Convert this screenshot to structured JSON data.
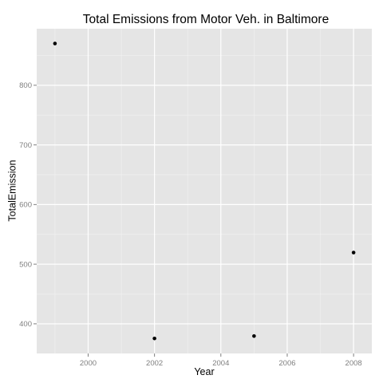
{
  "chart_data": {
    "type": "scatter",
    "title": "Total Emissions from Motor Veh. in Baltimore",
    "xlabel": "Year",
    "ylabel": "TotalEmission",
    "x": [
      1999,
      2002,
      2005,
      2008
    ],
    "y": [
      870.0,
      375.5,
      379.5,
      519.5
    ],
    "xlim": [
      1998.45,
      2008.55
    ],
    "ylim": [
      350.3,
      894.8
    ],
    "x_ticks": [
      2000,
      2002,
      2004,
      2006,
      2008
    ],
    "y_ticks": [
      400,
      500,
      600,
      700,
      800
    ],
    "x_tick_labels": [
      "2000",
      "2002",
      "2004",
      "2006",
      "2008"
    ],
    "y_tick_labels": [
      "400",
      "500",
      "600",
      "700",
      "800"
    ],
    "grid": true,
    "legend": "none",
    "colors": {
      "panel_background": "#e5e5e5",
      "grid_major": "#ffffff",
      "grid_minor": "#f2f2f2",
      "point": "#000000",
      "tick": "#7f7f7f"
    }
  }
}
